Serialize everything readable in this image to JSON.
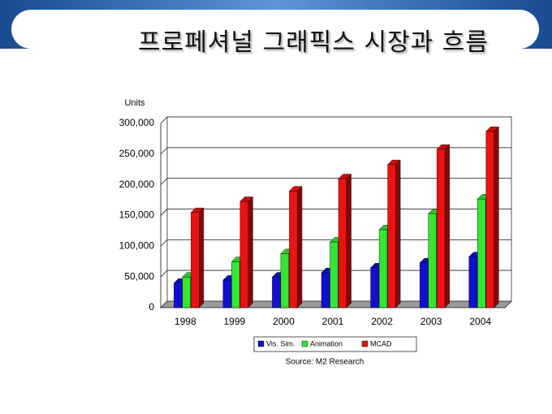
{
  "chart_data": {
    "type": "bar3d",
    "title": "프로페셔널 그래픽스 시장과 흐름",
    "y_label": "Units",
    "source": "Source: M2 Research",
    "categories": [
      "1998",
      "1999",
      "2000",
      "2001",
      "2002",
      "2003",
      "2004"
    ],
    "series": [
      {
        "name": "Vis. Sim.",
        "color": "#1010d0",
        "values": [
          40000,
          45000,
          50000,
          57000,
          65000,
          73000,
          83000
        ]
      },
      {
        "name": "Animation",
        "color": "#33e633",
        "values": [
          50000,
          75000,
          88000,
          107000,
          127000,
          153000,
          177000
        ]
      },
      {
        "name": "MCAD",
        "color": "#ee1111",
        "values": [
          155000,
          173000,
          190000,
          210000,
          233000,
          258000,
          287000
        ]
      }
    ],
    "ylim": [
      0,
      300000
    ],
    "yticks": [
      0,
      {
        "value": 50000,
        "label": "50,000"
      },
      {
        "value": 100000,
        "label": "100,000"
      },
      {
        "value": 150000,
        "label": "150,000"
      },
      {
        "value": 200000,
        "label": "200,000"
      },
      {
        "value": 250000,
        "label": "250,000"
      },
      {
        "value": 300000,
        "label": "300,000"
      }
    ],
    "grid": true
  }
}
